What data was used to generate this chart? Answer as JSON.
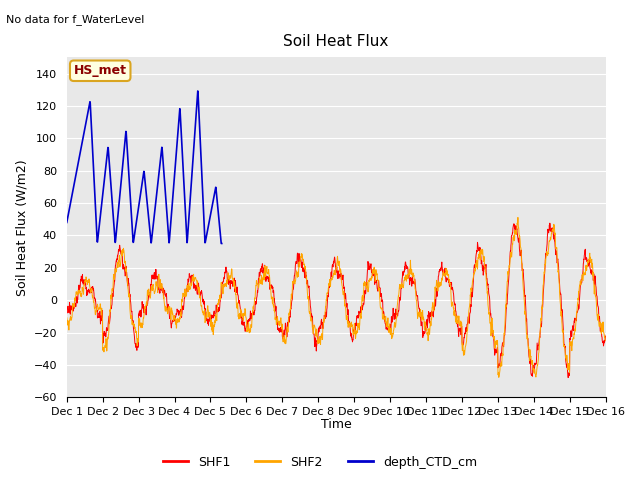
{
  "title": "Soil Heat Flux",
  "top_left_text": "No data for f_WaterLevel",
  "ylabel": "Soil Heat Flux (W/m2)",
  "xlabel": "Time",
  "annotation_box": "HS_met",
  "ylim": [
    -60,
    150
  ],
  "yticks": [
    -60,
    -40,
    -20,
    0,
    20,
    40,
    60,
    80,
    100,
    120,
    140
  ],
  "xtick_labels": [
    "Dec 1",
    "Dec 2",
    "Dec 3",
    "Dec 4",
    "Dec 5",
    "Dec 6",
    "Dec 7",
    "Dec 8",
    "Dec 9",
    "Dec 10",
    "Dec 11",
    "Dec 12",
    "Dec 13",
    "Dec 14",
    "Dec 15",
    "Dec 16"
  ],
  "color_shf1": "#ff0000",
  "color_shf2": "#ffa500",
  "color_depth": "#0000cc",
  "bg_color": "#e8e8e8",
  "grid_color": "#ffffff",
  "legend_entries": [
    "SHF1",
    "SHF2",
    "depth_CTD_cm"
  ]
}
